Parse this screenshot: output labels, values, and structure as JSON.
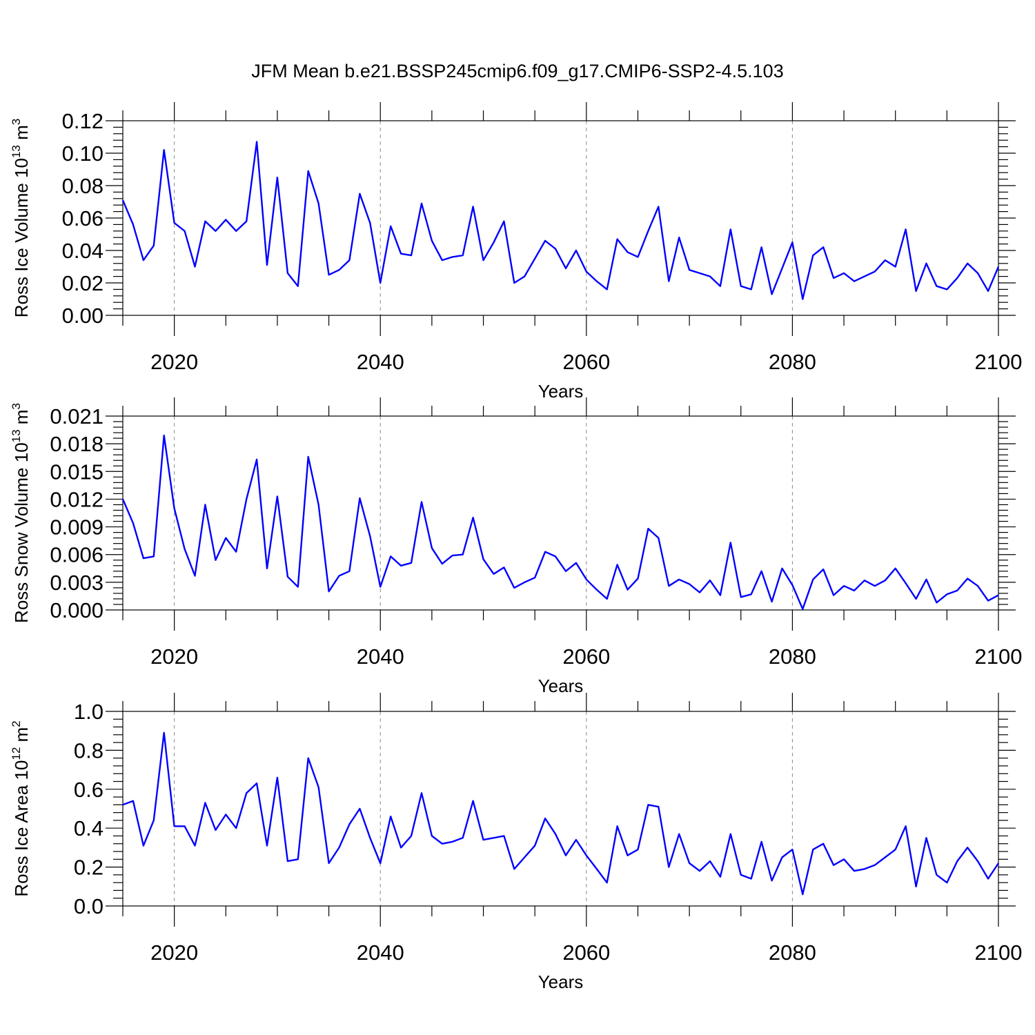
{
  "title": "JFM Mean b.e21.BSSP245cmip6.f09_g17.CMIP6-SSP2-4.5.103",
  "colors": {
    "line": "#0000ff",
    "axis": "#000000",
    "grid": "#888888"
  },
  "chart_data": [
    {
      "type": "line",
      "ylabel_main": "Ross Ice Volume 10",
      "ylabel_exp": "13",
      "ylabel_unit": " m",
      "ylabel_unit_exp": "3",
      "xlabel": "Years",
      "xlim": [
        2015,
        2100
      ],
      "ylim": [
        0,
        0.12
      ],
      "yticks": [
        0.0,
        0.02,
        0.04,
        0.06,
        0.08,
        0.1,
        0.12
      ],
      "ytick_labels": [
        "0.00",
        "0.02",
        "0.04",
        "0.06",
        "0.08",
        "0.10",
        "0.12"
      ],
      "xticks": [
        2020,
        2040,
        2060,
        2080,
        2100
      ],
      "xtick_labels": [
        "2020",
        "2040",
        "2060",
        "2080",
        "2100"
      ],
      "grid": "dashed vertical at major x ticks",
      "x": [
        2015,
        2016,
        2017,
        2018,
        2019,
        2020,
        2021,
        2022,
        2023,
        2024,
        2025,
        2026,
        2027,
        2028,
        2029,
        2030,
        2031,
        2032,
        2033,
        2034,
        2035,
        2036,
        2037,
        2038,
        2039,
        2040,
        2041,
        2042,
        2043,
        2044,
        2045,
        2046,
        2047,
        2048,
        2049,
        2050,
        2051,
        2052,
        2053,
        2054,
        2055,
        2056,
        2057,
        2058,
        2059,
        2060,
        2061,
        2062,
        2063,
        2064,
        2065,
        2066,
        2067,
        2068,
        2069,
        2070,
        2071,
        2072,
        2073,
        2074,
        2075,
        2076,
        2077,
        2078,
        2079,
        2080,
        2081,
        2082,
        2083,
        2084,
        2085,
        2086,
        2087,
        2088,
        2089,
        2090,
        2091,
        2092,
        2093,
        2094,
        2095,
        2096,
        2097,
        2098,
        2099,
        2100
      ],
      "values": [
        0.071,
        0.056,
        0.034,
        0.043,
        0.102,
        0.057,
        0.052,
        0.03,
        0.058,
        0.052,
        0.059,
        0.052,
        0.058,
        0.107,
        0.031,
        0.085,
        0.026,
        0.018,
        0.089,
        0.069,
        0.025,
        0.028,
        0.034,
        0.075,
        0.057,
        0.02,
        0.055,
        0.038,
        0.037,
        0.069,
        0.046,
        0.034,
        0.036,
        0.037,
        0.067,
        0.034,
        0.045,
        0.058,
        0.02,
        0.024,
        0.035,
        0.046,
        0.041,
        0.029,
        0.04,
        0.027,
        0.021,
        0.016,
        0.047,
        0.039,
        0.036,
        0.052,
        0.067,
        0.021,
        0.048,
        0.028,
        0.026,
        0.024,
        0.018,
        0.053,
        0.018,
        0.016,
        0.042,
        0.013,
        0.029,
        0.045,
        0.01,
        0.037,
        0.042,
        0.023,
        0.026,
        0.021,
        0.024,
        0.027,
        0.034,
        0.03,
        0.053,
        0.015,
        0.032,
        0.018,
        0.016,
        0.023,
        0.032,
        0.026,
        0.015,
        0.03
      ]
    },
    {
      "type": "line",
      "ylabel_main": "Ross Snow Volume 10",
      "ylabel_exp": "13",
      "ylabel_unit": " m",
      "ylabel_unit_exp": "3",
      "xlabel": "Years",
      "xlim": [
        2015,
        2100
      ],
      "ylim": [
        0,
        0.021
      ],
      "yticks": [
        0.0,
        0.003,
        0.006,
        0.009,
        0.012,
        0.015,
        0.018,
        0.021
      ],
      "ytick_labels": [
        "0.000",
        "0.003",
        "0.006",
        "0.009",
        "0.012",
        "0.015",
        "0.018",
        "0.021"
      ],
      "xticks": [
        2020,
        2040,
        2060,
        2080,
        2100
      ],
      "xtick_labels": [
        "2020",
        "2040",
        "2060",
        "2080",
        "2100"
      ],
      "grid": "dashed vertical at major x ticks",
      "x": [
        2015,
        2016,
        2017,
        2018,
        2019,
        2020,
        2021,
        2022,
        2023,
        2024,
        2025,
        2026,
        2027,
        2028,
        2029,
        2030,
        2031,
        2032,
        2033,
        2034,
        2035,
        2036,
        2037,
        2038,
        2039,
        2040,
        2041,
        2042,
        2043,
        2044,
        2045,
        2046,
        2047,
        2048,
        2049,
        2050,
        2051,
        2052,
        2053,
        2054,
        2055,
        2056,
        2057,
        2058,
        2059,
        2060,
        2061,
        2062,
        2063,
        2064,
        2065,
        2066,
        2067,
        2068,
        2069,
        2070,
        2071,
        2072,
        2073,
        2074,
        2075,
        2076,
        2077,
        2078,
        2079,
        2080,
        2081,
        2082,
        2083,
        2084,
        2085,
        2086,
        2087,
        2088,
        2089,
        2090,
        2091,
        2092,
        2093,
        2094,
        2095,
        2096,
        2097,
        2098,
        2099,
        2100
      ],
      "values": [
        0.012,
        0.0094,
        0.0056,
        0.0058,
        0.0189,
        0.011,
        0.0066,
        0.0037,
        0.0114,
        0.0054,
        0.0078,
        0.0063,
        0.012,
        0.0163,
        0.0045,
        0.0123,
        0.0036,
        0.0025,
        0.0166,
        0.0114,
        0.002,
        0.0037,
        0.0042,
        0.0121,
        0.008,
        0.0025,
        0.0058,
        0.0048,
        0.0051,
        0.0117,
        0.0067,
        0.005,
        0.0059,
        0.006,
        0.01,
        0.0055,
        0.0039,
        0.0046,
        0.0024,
        0.003,
        0.0035,
        0.0063,
        0.0058,
        0.0042,
        0.0051,
        0.0033,
        0.0022,
        0.0012,
        0.0049,
        0.0022,
        0.0034,
        0.0088,
        0.0078,
        0.0026,
        0.0033,
        0.0028,
        0.0019,
        0.0032,
        0.0016,
        0.0073,
        0.0014,
        0.0017,
        0.0042,
        0.0009,
        0.0045,
        0.0027,
        0.0001,
        0.0033,
        0.0044,
        0.0016,
        0.0026,
        0.0021,
        0.0032,
        0.0026,
        0.0032,
        0.0045,
        0.0029,
        0.0012,
        0.0033,
        0.0008,
        0.0017,
        0.0021,
        0.0034,
        0.0026,
        0.001,
        0.0016
      ]
    },
    {
      "type": "line",
      "ylabel_main": "Ross Ice Area 10",
      "ylabel_exp": "12",
      "ylabel_unit": " m",
      "ylabel_unit_exp": "2",
      "xlabel": "Years",
      "xlim": [
        2015,
        2100
      ],
      "ylim": [
        0,
        1.0
      ],
      "yticks": [
        0.0,
        0.2,
        0.4,
        0.6,
        0.8,
        1.0
      ],
      "ytick_labels": [
        "0.0",
        "0.2",
        "0.4",
        "0.6",
        "0.8",
        "1.0"
      ],
      "xticks": [
        2020,
        2040,
        2060,
        2080,
        2100
      ],
      "xtick_labels": [
        "2020",
        "2040",
        "2060",
        "2080",
        "2100"
      ],
      "grid": "dashed vertical at major x ticks",
      "x": [
        2015,
        2016,
        2017,
        2018,
        2019,
        2020,
        2021,
        2022,
        2023,
        2024,
        2025,
        2026,
        2027,
        2028,
        2029,
        2030,
        2031,
        2032,
        2033,
        2034,
        2035,
        2036,
        2037,
        2038,
        2039,
        2040,
        2041,
        2042,
        2043,
        2044,
        2045,
        2046,
        2047,
        2048,
        2049,
        2050,
        2051,
        2052,
        2053,
        2054,
        2055,
        2056,
        2057,
        2058,
        2059,
        2060,
        2061,
        2062,
        2063,
        2064,
        2065,
        2066,
        2067,
        2068,
        2069,
        2070,
        2071,
        2072,
        2073,
        2074,
        2075,
        2076,
        2077,
        2078,
        2079,
        2080,
        2081,
        2082,
        2083,
        2084,
        2085,
        2086,
        2087,
        2088,
        2089,
        2090,
        2091,
        2092,
        2093,
        2094,
        2095,
        2096,
        2097,
        2098,
        2099,
        2100
      ],
      "values": [
        0.52,
        0.54,
        0.31,
        0.44,
        0.89,
        0.41,
        0.41,
        0.31,
        0.53,
        0.39,
        0.47,
        0.4,
        0.58,
        0.63,
        0.31,
        0.66,
        0.23,
        0.24,
        0.76,
        0.61,
        0.22,
        0.3,
        0.42,
        0.5,
        0.35,
        0.22,
        0.46,
        0.3,
        0.36,
        0.58,
        0.36,
        0.32,
        0.33,
        0.35,
        0.54,
        0.34,
        0.35,
        0.36,
        0.19,
        0.25,
        0.31,
        0.45,
        0.37,
        0.26,
        0.34,
        0.26,
        0.19,
        0.12,
        0.41,
        0.26,
        0.29,
        0.52,
        0.51,
        0.2,
        0.37,
        0.22,
        0.18,
        0.23,
        0.15,
        0.37,
        0.16,
        0.14,
        0.33,
        0.13,
        0.25,
        0.29,
        0.06,
        0.29,
        0.32,
        0.21,
        0.24,
        0.18,
        0.19,
        0.21,
        0.25,
        0.29,
        0.41,
        0.1,
        0.35,
        0.16,
        0.12,
        0.23,
        0.3,
        0.23,
        0.14,
        0.22
      ]
    }
  ]
}
